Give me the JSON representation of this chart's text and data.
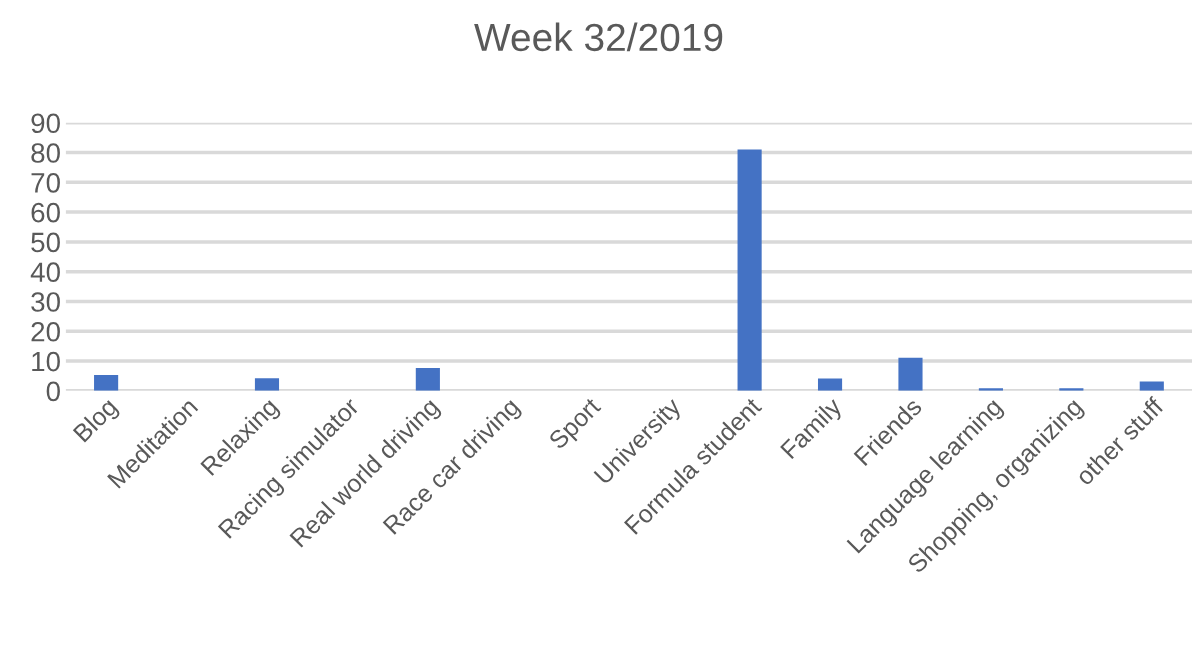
{
  "chart_data": {
    "type": "bar",
    "title": "Week 32/2019",
    "categories": [
      "Blog",
      "Meditation",
      "Relaxing",
      "Racing simulator",
      "Real world driving",
      "Race car driving",
      "Sport",
      "University",
      "Formula student",
      "Family",
      "Friends",
      "Language learning",
      "Shopping, organizing",
      "other stuff"
    ],
    "values": [
      5.3,
      0,
      4.2,
      0,
      7.7,
      0,
      0,
      0,
      81,
      4.1,
      11.1,
      0.9,
      0.9,
      3.1
    ],
    "color": "#4472c4",
    "ylim": [
      0,
      90
    ],
    "yticks": [
      0,
      10,
      20,
      30,
      40,
      50,
      60,
      70,
      80,
      90
    ],
    "grid": "y",
    "legend": false
  }
}
